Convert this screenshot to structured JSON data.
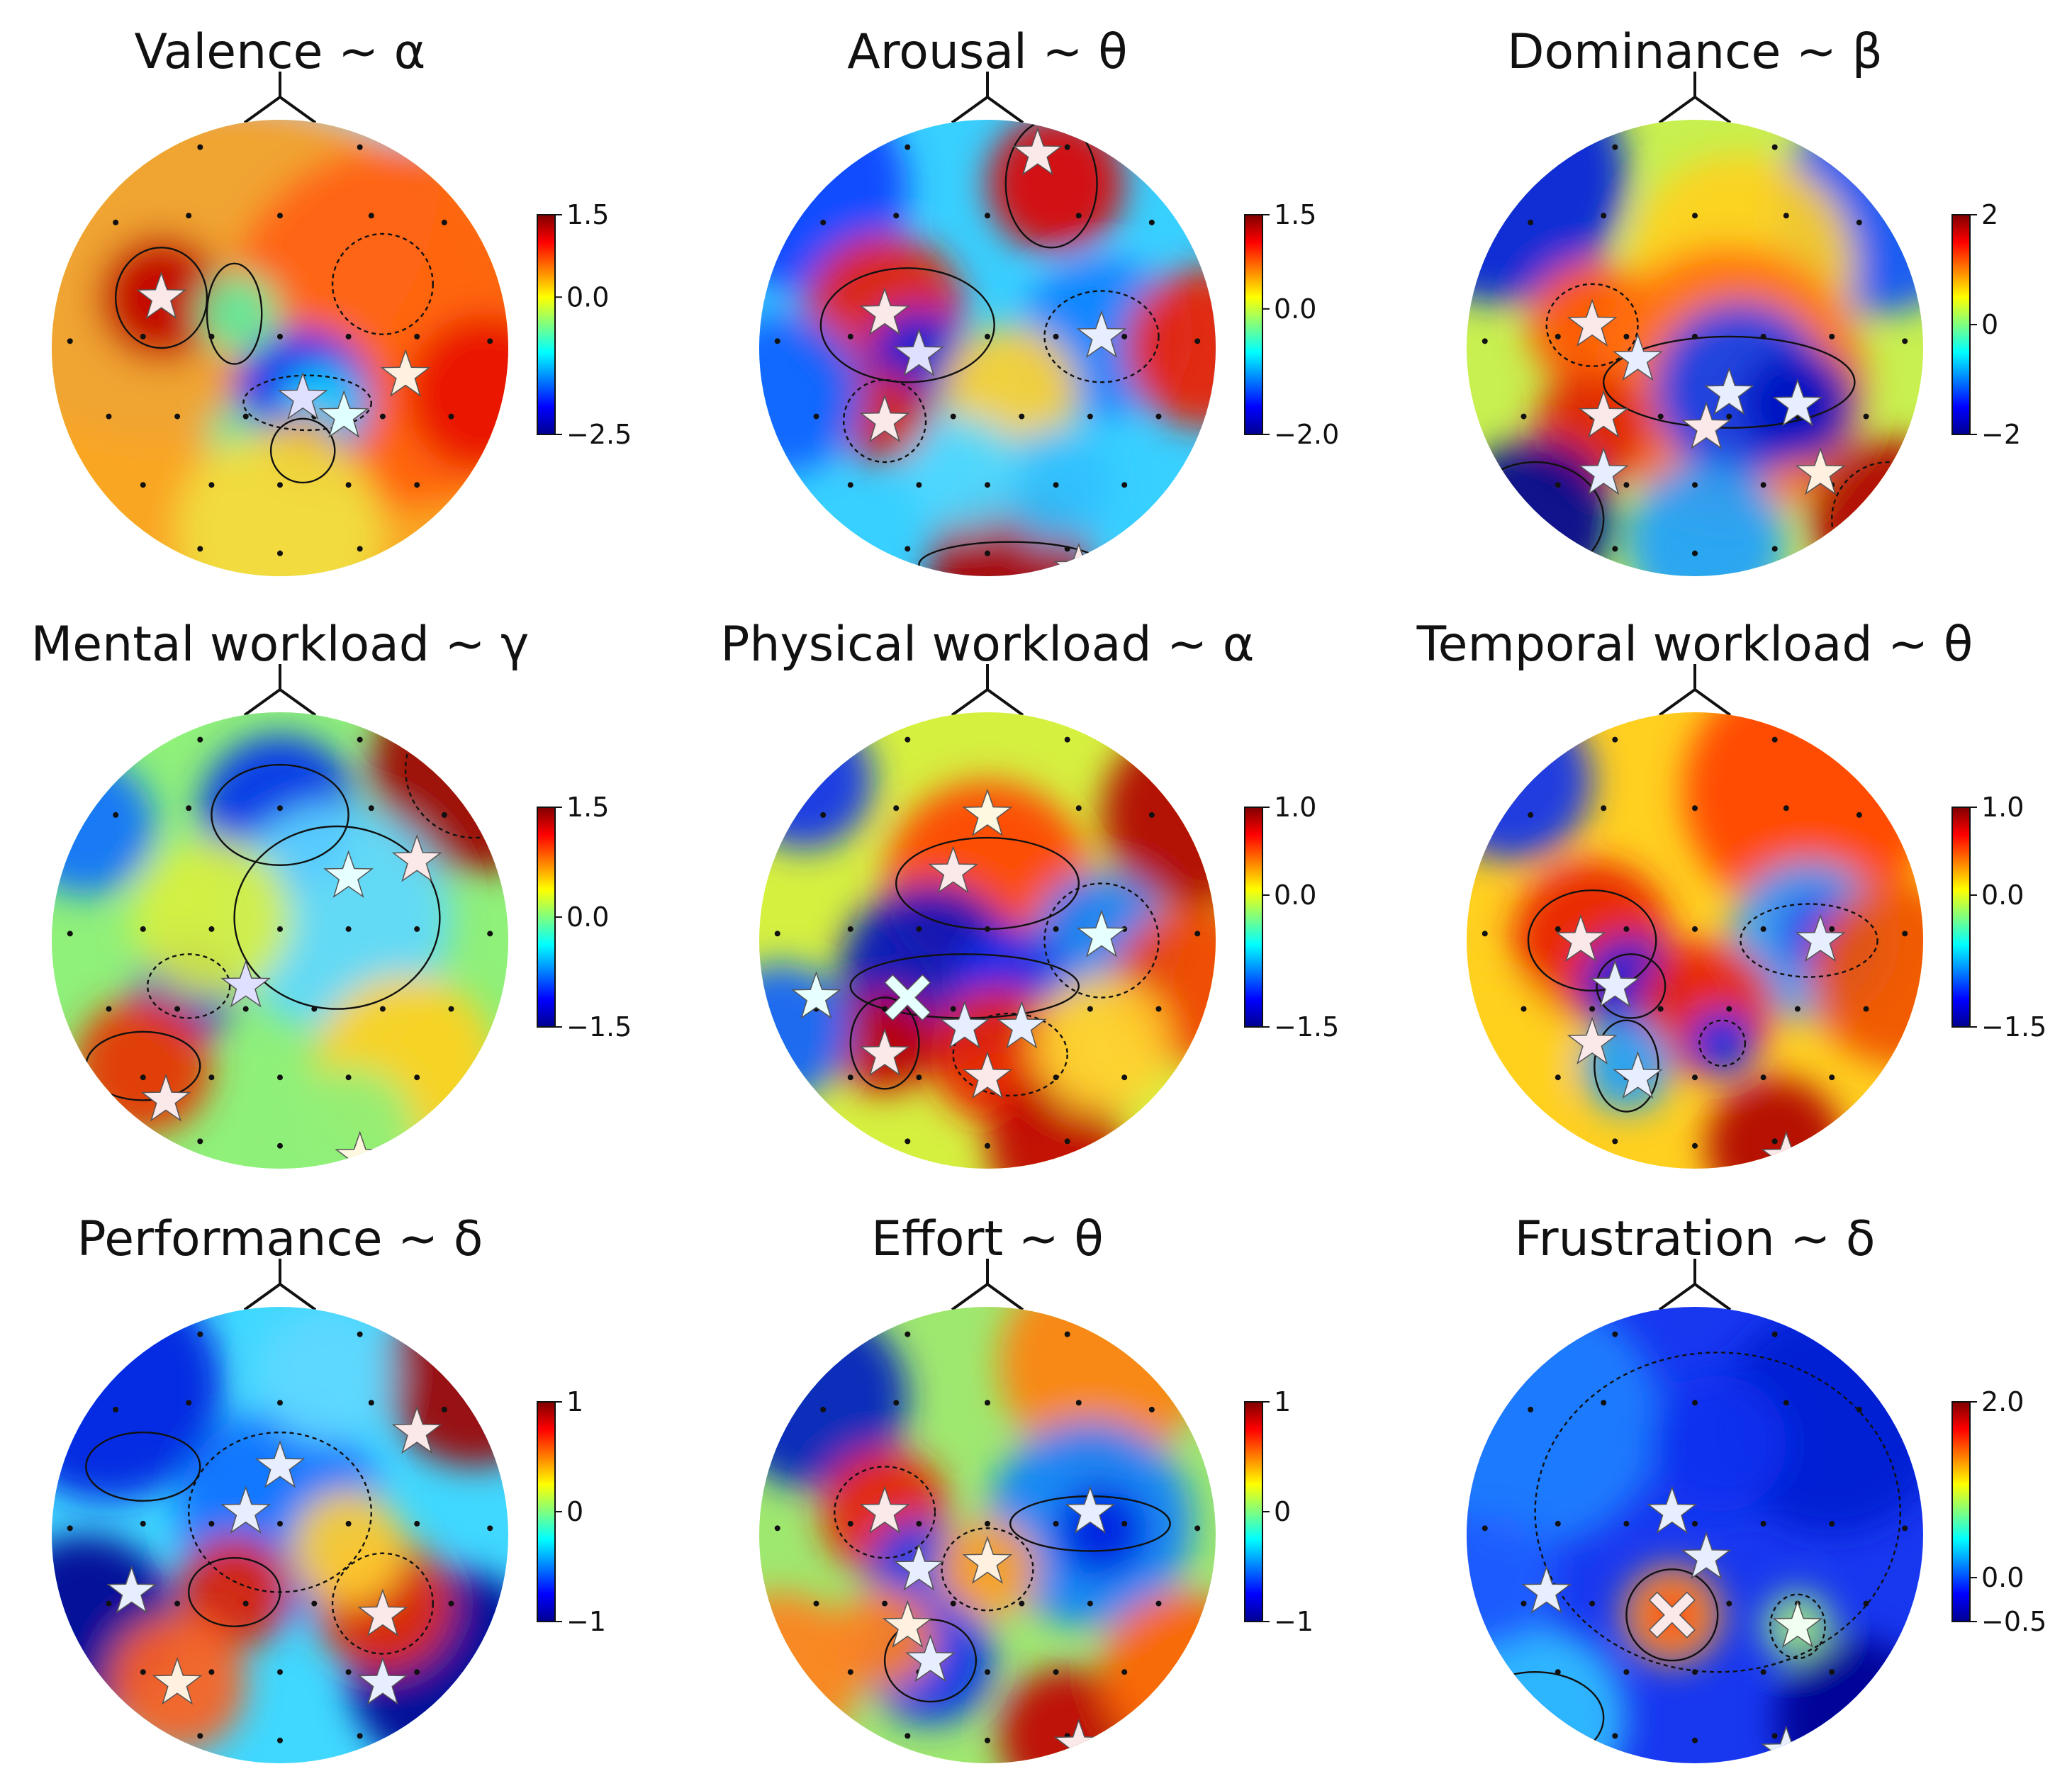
{
  "chart_data": [
    {
      "type": "heatmap",
      "subtype": "eeg-scalp-topomap",
      "title": "Valence ~ α",
      "colormap": "jet",
      "colorbar": {
        "ticks": [
          "1.5",
          "0.0",
          "−2.5"
        ],
        "range": [
          -2.5,
          1.5
        ]
      },
      "markers": {
        "stars": 4,
        "crosses": 0
      }
    },
    {
      "type": "heatmap",
      "subtype": "eeg-scalp-topomap",
      "title": "Arousal ~ θ",
      "colormap": "jet",
      "colorbar": {
        "ticks": [
          "1.5",
          "0.0",
          "−2.0"
        ],
        "range": [
          -2.0,
          1.5
        ]
      },
      "markers": {
        "stars": 6,
        "crosses": 0
      }
    },
    {
      "type": "heatmap",
      "subtype": "eeg-scalp-topomap",
      "title": "Dominance ~ β",
      "colormap": "jet",
      "colorbar": {
        "ticks": [
          "2",
          "0",
          "−2"
        ],
        "range": [
          -2,
          2
        ]
      },
      "markers": {
        "stars": 9,
        "crosses": 0
      }
    },
    {
      "type": "heatmap",
      "subtype": "eeg-scalp-topomap",
      "title": "Mental workload ~ γ",
      "colormap": "jet",
      "colorbar": {
        "ticks": [
          "1.5",
          "0.0",
          "−1.5"
        ],
        "range": [
          -1.5,
          1.5
        ]
      },
      "markers": {
        "stars": 5,
        "crosses": 0
      }
    },
    {
      "type": "heatmap",
      "subtype": "eeg-scalp-topomap",
      "title": "Physical workload ~ α",
      "colormap": "jet",
      "colorbar": {
        "ticks": [
          "1.0",
          "0.0",
          "−1.5"
        ],
        "range": [
          -1.5,
          1.0
        ]
      },
      "markers": {
        "stars": 8,
        "crosses": 1
      }
    },
    {
      "type": "heatmap",
      "subtype": "eeg-scalp-topomap",
      "title": "Temporal workload ~ θ",
      "colormap": "jet",
      "colorbar": {
        "ticks": [
          "1.0",
          "0.0",
          "−1.5"
        ],
        "range": [
          -1.5,
          1.0
        ]
      },
      "markers": {
        "stars": 6,
        "crosses": 0
      }
    },
    {
      "type": "heatmap",
      "subtype": "eeg-scalp-topomap",
      "title": "Performance ~ δ",
      "colormap": "jet",
      "colorbar": {
        "ticks": [
          "1",
          "0",
          "−1"
        ],
        "range": [
          -1,
          1
        ]
      },
      "markers": {
        "stars": 8,
        "crosses": 0
      }
    },
    {
      "type": "heatmap",
      "subtype": "eeg-scalp-topomap",
      "title": "Effort ~ θ",
      "colormap": "jet",
      "colorbar": {
        "ticks": [
          "1",
          "0",
          "−1"
        ],
        "range": [
          -1,
          1
        ]
      },
      "markers": {
        "stars": 7,
        "crosses": 0
      }
    },
    {
      "type": "heatmap",
      "subtype": "eeg-scalp-topomap",
      "title": "Frustration ~ δ",
      "colormap": "jet",
      "colorbar": {
        "ticks": [
          "2.0",
          "0.0",
          "−0.5"
        ],
        "range": [
          -0.5,
          2.0
        ]
      },
      "markers": {
        "stars": 5,
        "crosses": 1
      }
    }
  ]
}
